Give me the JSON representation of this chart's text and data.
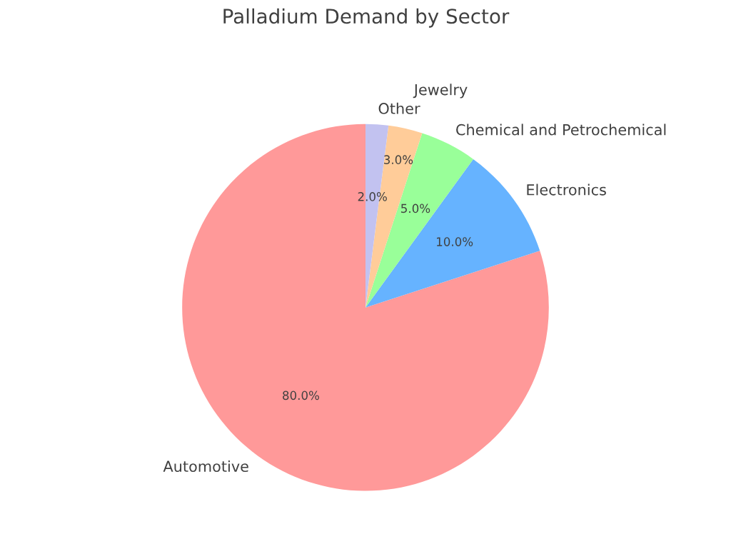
{
  "chart_data": {
    "type": "pie",
    "title": "Palladium Demand by Sector",
    "categories": [
      "Automotive",
      "Electronics",
      "Chemical and Petrochemical",
      "Jewelry",
      "Other"
    ],
    "values": [
      80,
      10,
      5,
      3,
      2
    ],
    "colors": [
      "#ff9999",
      "#66b3ff",
      "#99ff99",
      "#ffcc99",
      "#c2c2f0"
    ],
    "value_labels": [
      "80.0%",
      "10.0%",
      "5.0%",
      "3.0%",
      "2.0%"
    ]
  }
}
